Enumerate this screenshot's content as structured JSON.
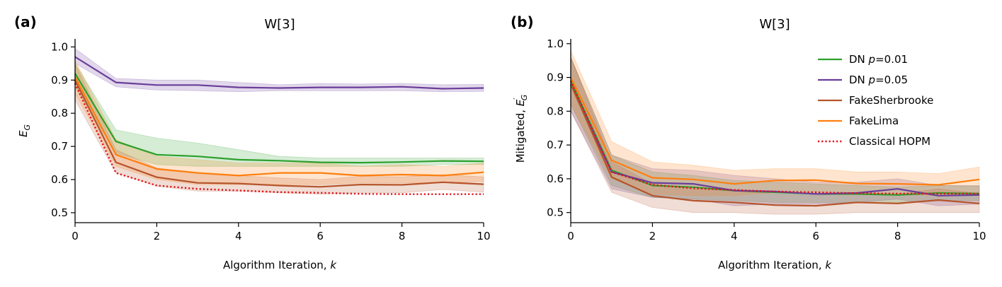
{
  "colors": {
    "DN p=0.01": "#2ca02c",
    "DN p=0.05": "#6a3d9a",
    "FakeSherbrooke": "#b5542b",
    "FakeLima": "#ff7f0e",
    "Classical HOPM": "#e3111a"
  },
  "chart_data": [
    {
      "type": "line",
      "panel_label": "(a)",
      "title": "W[3]",
      "xlabel": "Algorithm Iteration, k",
      "ylabel": "E_G",
      "xlim": [
        0,
        10
      ],
      "ylim": [
        0.47,
        1.02
      ],
      "xticks": [
        0,
        2,
        4,
        6,
        8,
        10
      ],
      "yticks": [
        0.5,
        0.6,
        0.7,
        0.8,
        0.9,
        1.0
      ],
      "x": [
        0,
        1,
        2,
        3,
        4,
        5,
        6,
        7,
        8,
        9,
        10
      ],
      "series": [
        {
          "name": "DN p=0.01",
          "style": "solid",
          "values": [
            0.92,
            0.715,
            0.675,
            0.67,
            0.66,
            0.657,
            0.652,
            0.651,
            0.653,
            0.656,
            0.655
          ],
          "lower": [
            0.88,
            0.68,
            0.645,
            0.64,
            0.64,
            0.64,
            0.64,
            0.64,
            0.64,
            0.645,
            0.645
          ],
          "upper": [
            0.95,
            0.75,
            0.725,
            0.71,
            0.69,
            0.67,
            0.665,
            0.665,
            0.665,
            0.665,
            0.665
          ]
        },
        {
          "name": "DN p=0.05",
          "style": "solid",
          "values": [
            0.97,
            0.893,
            0.885,
            0.885,
            0.878,
            0.876,
            0.878,
            0.878,
            0.88,
            0.874,
            0.876
          ],
          "lower": [
            0.95,
            0.88,
            0.87,
            0.868,
            0.865,
            0.868,
            0.868,
            0.868,
            0.868,
            0.865,
            0.866
          ],
          "upper": [
            0.995,
            0.905,
            0.9,
            0.9,
            0.893,
            0.886,
            0.89,
            0.888,
            0.89,
            0.886,
            0.887
          ]
        },
        {
          "name": "FakeSherbrooke",
          "style": "solid",
          "values": [
            0.9,
            0.652,
            0.607,
            0.59,
            0.588,
            0.582,
            0.578,
            0.585,
            0.584,
            0.592,
            0.586
          ],
          "lower": [
            0.84,
            0.62,
            0.58,
            0.565,
            0.565,
            0.56,
            0.556,
            0.56,
            0.56,
            0.57,
            0.562
          ],
          "upper": [
            0.95,
            0.69,
            0.635,
            0.62,
            0.612,
            0.605,
            0.6,
            0.61,
            0.608,
            0.615,
            0.608
          ]
        },
        {
          "name": "FakeLima",
          "style": "solid",
          "values": [
            0.91,
            0.675,
            0.632,
            0.62,
            0.612,
            0.62,
            0.62,
            0.612,
            0.615,
            0.612,
            0.622
          ],
          "lower": [
            0.86,
            0.64,
            0.6,
            0.585,
            0.585,
            0.585,
            0.585,
            0.59,
            0.59,
            0.59,
            0.595
          ],
          "upper": [
            0.96,
            0.72,
            0.67,
            0.66,
            0.65,
            0.65,
            0.65,
            0.64,
            0.645,
            0.64,
            0.65
          ]
        },
        {
          "name": "Classical HOPM",
          "style": "dotted",
          "values": [
            0.89,
            0.62,
            0.582,
            0.572,
            0.567,
            0.562,
            0.56,
            0.557,
            0.556,
            0.556,
            0.556
          ]
        }
      ]
    },
    {
      "type": "line",
      "panel_label": "(b)",
      "title": "W[3]",
      "xlabel": "Algorithm Iteration, k",
      "ylabel": "Mitigated, E′_G",
      "xlim": [
        0,
        10
      ],
      "ylim": [
        0.47,
        1.01
      ],
      "xticks": [
        0,
        2,
        4,
        6,
        8,
        10
      ],
      "yticks": [
        0.5,
        0.6,
        0.7,
        0.8,
        0.9,
        1.0
      ],
      "x": [
        0,
        1,
        2,
        3,
        4,
        5,
        6,
        7,
        8,
        9,
        10
      ],
      "legend": {
        "position": "upper-right",
        "entries": [
          {
            "series": "DN p=0.01",
            "prefix": "DN ",
            "var": "p",
            "suffix": "=0.01",
            "style": "solid"
          },
          {
            "series": "DN p=0.05",
            "prefix": "DN ",
            "var": "p",
            "suffix": "=0.05",
            "style": "solid"
          },
          {
            "series": "FakeSherbrooke",
            "prefix": "FakeSherbrooke",
            "var": "",
            "suffix": "",
            "style": "solid"
          },
          {
            "series": "FakeLima",
            "prefix": "FakeLima",
            "var": "",
            "suffix": "",
            "style": "solid"
          },
          {
            "series": "Classical HOPM",
            "prefix": "Classical HOPM",
            "var": "",
            "suffix": "",
            "style": "dotted"
          }
        ]
      },
      "series": [
        {
          "name": "DN p=0.01",
          "style": "solid",
          "values": [
            0.89,
            0.625,
            0.58,
            0.575,
            0.565,
            0.56,
            0.555,
            0.555,
            0.552,
            0.558,
            0.556
          ],
          "lower": [
            0.82,
            0.58,
            0.545,
            0.54,
            0.535,
            0.53,
            0.53,
            0.53,
            0.53,
            0.535,
            0.535
          ],
          "upper": [
            0.96,
            0.67,
            0.62,
            0.61,
            0.595,
            0.59,
            0.585,
            0.58,
            0.575,
            0.58,
            0.578
          ]
        },
        {
          "name": "DN p=0.05",
          "style": "solid",
          "values": [
            0.88,
            0.62,
            0.588,
            0.585,
            0.565,
            0.562,
            0.555,
            0.558,
            0.57,
            0.55,
            0.552
          ],
          "lower": [
            0.8,
            0.57,
            0.545,
            0.54,
            0.52,
            0.525,
            0.525,
            0.53,
            0.54,
            0.52,
            0.525
          ],
          "upper": [
            0.96,
            0.67,
            0.63,
            0.625,
            0.61,
            0.6,
            0.59,
            0.59,
            0.6,
            0.58,
            0.58
          ]
        },
        {
          "name": "FakeSherbrooke",
          "style": "solid",
          "values": [
            0.88,
            0.605,
            0.55,
            0.535,
            0.53,
            0.522,
            0.52,
            0.53,
            0.527,
            0.537,
            0.527
          ],
          "lower": [
            0.8,
            0.56,
            0.515,
            0.5,
            0.5,
            0.495,
            0.495,
            0.5,
            0.5,
            0.5,
            0.5
          ],
          "upper": [
            0.96,
            0.65,
            0.585,
            0.57,
            0.565,
            0.555,
            0.55,
            0.56,
            0.555,
            0.57,
            0.556
          ]
        },
        {
          "name": "FakeLima",
          "style": "solid",
          "values": [
            0.9,
            0.655,
            0.603,
            0.598,
            0.585,
            0.595,
            0.596,
            0.586,
            0.585,
            0.582,
            0.598
          ],
          "lower": [
            0.82,
            0.6,
            0.555,
            0.55,
            0.55,
            0.56,
            0.56,
            0.555,
            0.555,
            0.55,
            0.56
          ],
          "upper": [
            0.98,
            0.71,
            0.65,
            0.64,
            0.625,
            0.63,
            0.63,
            0.62,
            0.62,
            0.615,
            0.635
          ]
        },
        {
          "name": "Classical HOPM",
          "style": "dotted",
          "values": [
            0.89,
            0.62,
            0.582,
            0.572,
            0.567,
            0.562,
            0.56,
            0.557,
            0.556,
            0.556,
            0.556
          ]
        }
      ]
    }
  ]
}
